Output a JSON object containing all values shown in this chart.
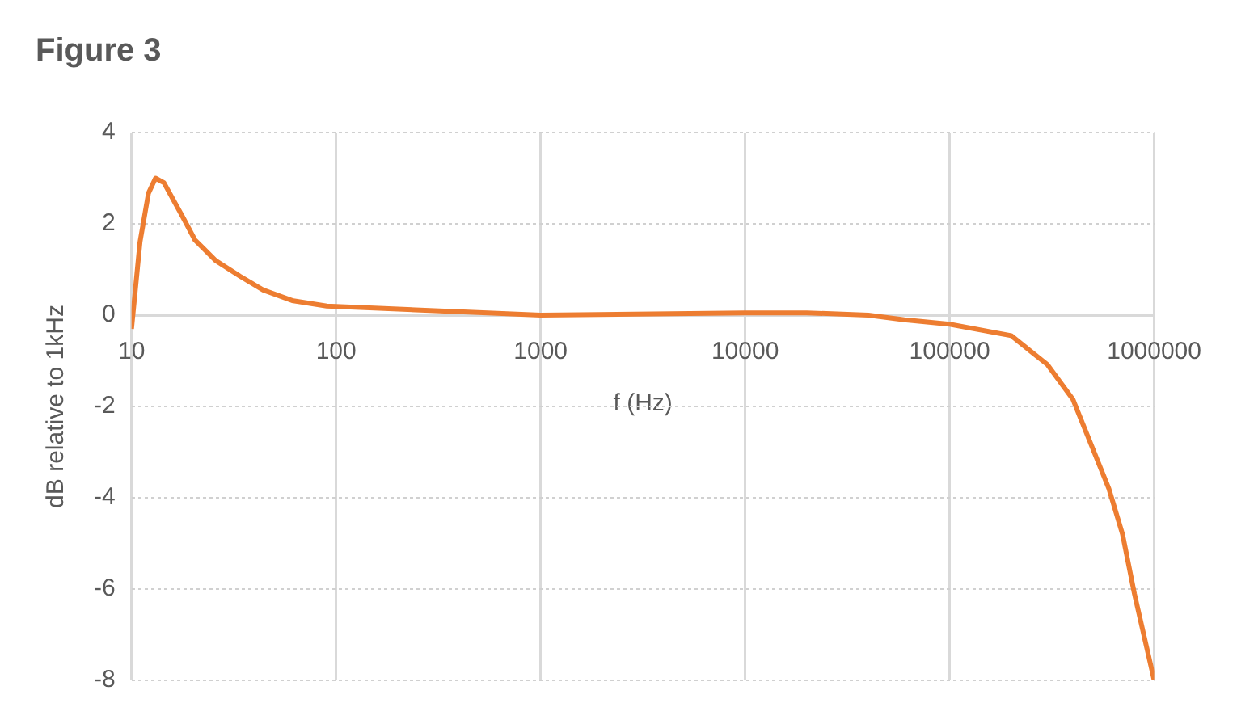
{
  "chart_data": {
    "type": "line",
    "title": "Figure 3",
    "xlabel": "f (Hz)",
    "ylabel": "dB relative to 1kHz",
    "log": "x",
    "xlim": [
      10,
      1000000
    ],
    "xticks": [
      10,
      100,
      1000,
      10000,
      100000,
      1000000
    ],
    "ylim": [
      -8,
      4
    ],
    "yticks": [
      -8,
      -6,
      -4,
      -2,
      0,
      2,
      4
    ],
    "grid": true,
    "legend": false,
    "marker": "none",
    "line_style": "solid",
    "x": [
      10,
      11,
      12.1,
      13.1,
      14.4,
      17.8,
      20.4,
      25.7,
      34,
      44,
      61,
      90,
      1000,
      10000,
      20000,
      40000,
      60000,
      100000,
      200000,
      300000,
      400000,
      600000,
      700000,
      800000,
      1000000
    ],
    "series": [
      {
        "color": "#ed7d31",
        "values": [
          -0.3,
          1.6,
          2.67,
          3.0,
          2.9,
          2.15,
          1.65,
          1.2,
          0.85,
          0.55,
          0.32,
          0.2,
          0,
          0.05,
          0.05,
          0,
          -0.1,
          -0.2,
          -0.45,
          -1.08,
          -1.84,
          -3.8,
          -4.8,
          -6.1,
          -8
        ]
      }
    ]
  }
}
